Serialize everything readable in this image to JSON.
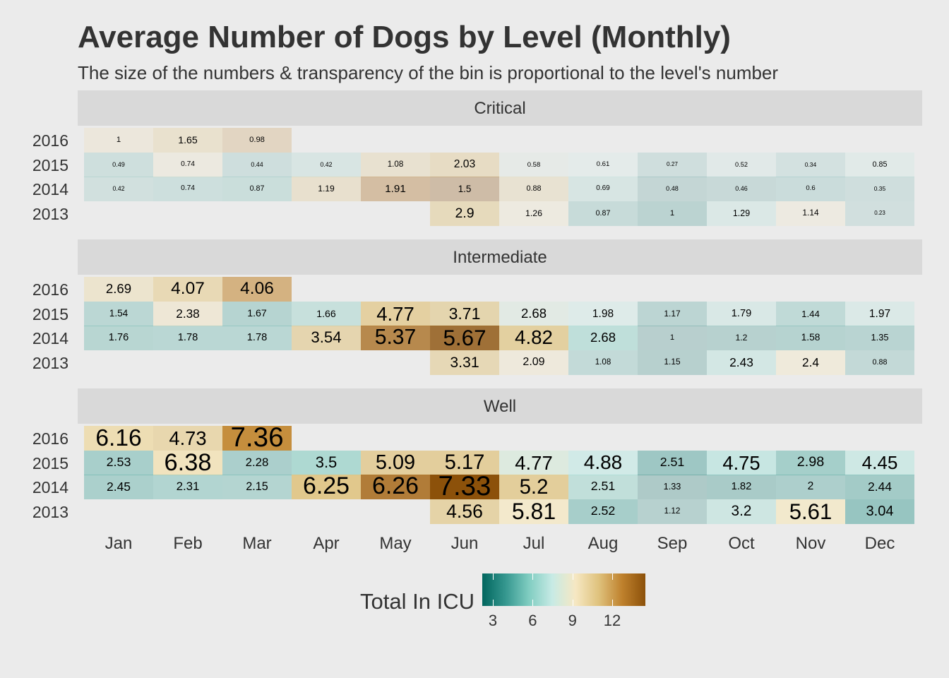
{
  "chart_data": {
    "type": "heatmap",
    "title": "Average Number of Dogs by Level (Monthly)",
    "subtitle": "The size of the numbers & transparency of the bin is proportional to the level's number",
    "x_categories": [
      "Jan",
      "Feb",
      "Mar",
      "Apr",
      "May",
      "Jun",
      "Jul",
      "Aug",
      "Sep",
      "Oct",
      "Nov",
      "Dec"
    ],
    "y_categories": [
      "2016",
      "2015",
      "2014",
      "2013"
    ],
    "panels": [
      {
        "name": "Critical",
        "rows": [
          {
            "year": "2016",
            "values": [
              "1",
              "1.65",
              "0.98",
              null,
              null,
              null,
              null,
              null,
              null,
              null,
              null,
              null
            ]
          },
          {
            "year": "2015",
            "values": [
              "0.49",
              "0.74",
              "0.44",
              "0.42",
              "1.08",
              "2.03",
              "0.58",
              "0.61",
              "0.27",
              "0.52",
              "0.34",
              "0.85"
            ]
          },
          {
            "year": "2014",
            "values": [
              "0.42",
              "0.74",
              "0.87",
              "1.19",
              "1.91",
              "1.5",
              "0.88",
              "0.69",
              "0.48",
              "0.46",
              "0.6",
              "0.35"
            ]
          },
          {
            "year": "2013",
            "values": [
              null,
              null,
              null,
              null,
              null,
              "2.9",
              "1.26",
              "0.87",
              "1",
              "1.29",
              "1.14",
              "0.23"
            ]
          }
        ]
      },
      {
        "name": "Intermediate",
        "rows": [
          {
            "year": "2016",
            "values": [
              "2.69",
              "4.07",
              "4.06",
              null,
              null,
              null,
              null,
              null,
              null,
              null,
              null,
              null
            ]
          },
          {
            "year": "2015",
            "values": [
              "1.54",
              "2.38",
              "1.67",
              "1.66",
              "4.77",
              "3.71",
              "2.68",
              "1.98",
              "1.17",
              "1.79",
              "1.44",
              "1.97"
            ]
          },
          {
            "year": "2014",
            "values": [
              "1.76",
              "1.78",
              "1.78",
              "3.54",
              "5.37",
              "5.67",
              "4.82",
              "2.68",
              "1",
              "1.2",
              "1.58",
              "1.35"
            ]
          },
          {
            "year": "2013",
            "values": [
              null,
              null,
              null,
              null,
              null,
              "3.31",
              "2.09",
              "1.08",
              "1.15",
              "2.43",
              "2.4",
              "0.88"
            ]
          }
        ]
      },
      {
        "name": "Well",
        "rows": [
          {
            "year": "2016",
            "values": [
              "6.16",
              "4.73",
              "7.36",
              null,
              null,
              null,
              null,
              null,
              null,
              null,
              null,
              null
            ]
          },
          {
            "year": "2015",
            "values": [
              "2.53",
              "6.38",
              "2.28",
              "3.5",
              "5.09",
              "5.17",
              "4.77",
              "4.88",
              "2.51",
              "4.75",
              "2.98",
              "4.45"
            ]
          },
          {
            "year": "2014",
            "values": [
              "2.45",
              "2.31",
              "2.15",
              "6.25",
              "6.26",
              "7.33",
              "5.2",
              "2.51",
              "1.33",
              "1.82",
              "2",
              "2.44"
            ]
          },
          {
            "year": "2013",
            "values": [
              null,
              null,
              null,
              null,
              null,
              "4.56",
              "5.81",
              "2.52",
              "1.12",
              "3.2",
              "5.61",
              "3.04"
            ]
          }
        ]
      }
    ],
    "legend": {
      "title": "Total In ICU",
      "ticks": [
        "3",
        "6",
        "9",
        "12"
      ],
      "range": [
        2.2,
        14.5
      ],
      "colors": [
        "#01665e",
        "#35978f",
        "#80cdc1",
        "#c7eae5",
        "#f6e8c3",
        "#dfc27d",
        "#bf812d",
        "#8c510a"
      ]
    }
  }
}
